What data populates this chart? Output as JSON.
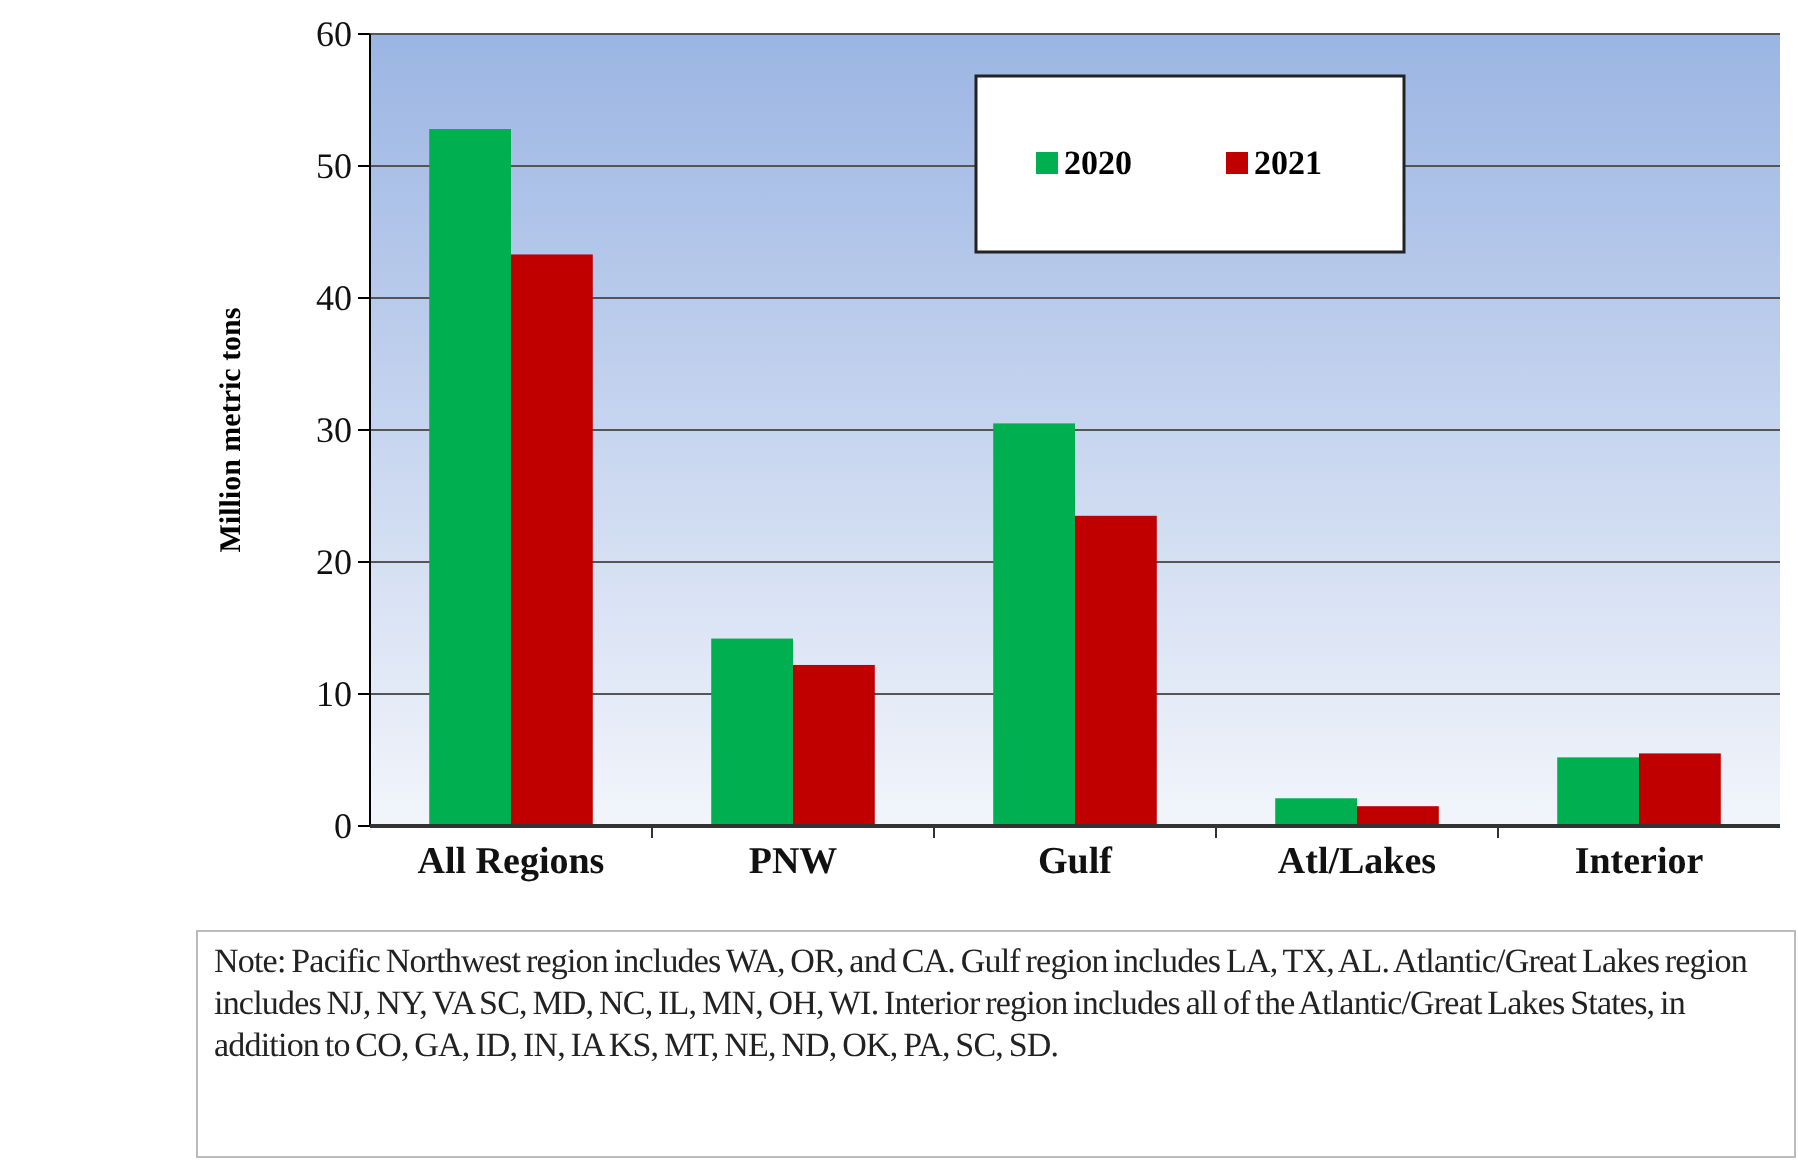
{
  "chart_data": {
    "type": "bar",
    "ylabel": "Million metric tons",
    "categories": [
      "All Regions",
      "PNW",
      "Gulf",
      "Atl/Lakes",
      "Interior"
    ],
    "series": [
      {
        "name": "2020",
        "color": "#00b050",
        "values": [
          52.8,
          14.2,
          30.5,
          2.1,
          5.2
        ]
      },
      {
        "name": "2021",
        "color": "#c00000",
        "values": [
          43.3,
          12.2,
          23.5,
          1.5,
          5.5
        ]
      }
    ],
    "ylim": [
      0,
      60
    ],
    "yticks": [
      0,
      10,
      20,
      30,
      40,
      50,
      60
    ],
    "grid": "y",
    "legend": "top",
    "annotations": [
      "Note: Pacific Northwest region includes WA, OR, and CA. Gulf region includes LA, TX, AL. Atlantic/Great Lakes region includes NJ, NY, VA SC, MD, NC, IL, MN, OH, WI. Interior region includes all of the Atlantic/Great Lakes States, in addition to CO, GA, ID, IN, IA KS, MT, NE, ND, OK, PA, SC, SD."
    ]
  }
}
